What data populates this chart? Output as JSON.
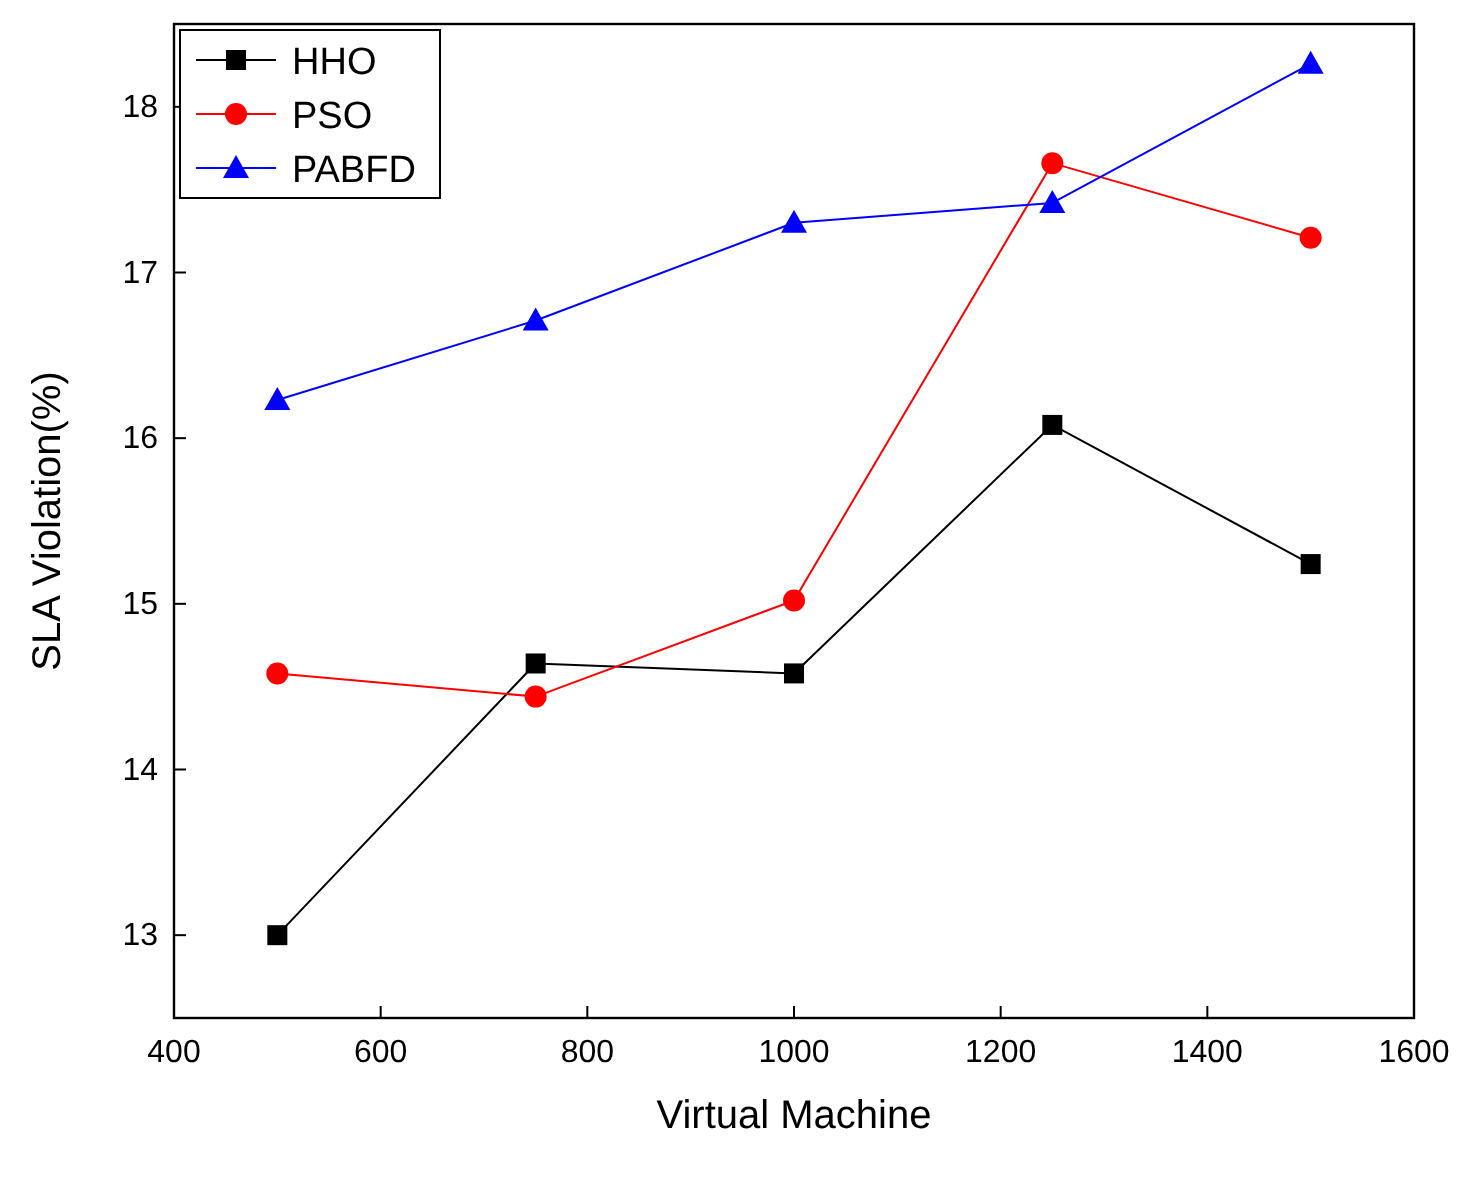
{
  "chart_data": {
    "type": "line",
    "xlabel": "Virtual Machine",
    "ylabel": "SLA Violation(%)",
    "x": [
      500,
      750,
      1000,
      1250,
      1500
    ],
    "series": [
      {
        "name": "HHO",
        "color": "#000000",
        "marker": "square",
        "values": [
          13.0,
          14.64,
          14.58,
          16.08,
          15.24
        ]
      },
      {
        "name": "PSO",
        "color": "#ff0000",
        "marker": "circle",
        "values": [
          14.58,
          14.44,
          15.02,
          17.66,
          17.21
        ]
      },
      {
        "name": "PABFD",
        "color": "#0000ff",
        "marker": "triangle",
        "values": [
          16.23,
          16.71,
          17.3,
          17.42,
          18.26
        ]
      }
    ],
    "xlim": [
      400,
      1600
    ],
    "xticks": [
      400,
      600,
      800,
      1000,
      1200,
      1400,
      1600
    ],
    "ylim": [
      12.5,
      18.5
    ],
    "yticks": [
      13,
      14,
      15,
      16,
      17,
      18
    ],
    "legend": "top left",
    "grid": false
  }
}
